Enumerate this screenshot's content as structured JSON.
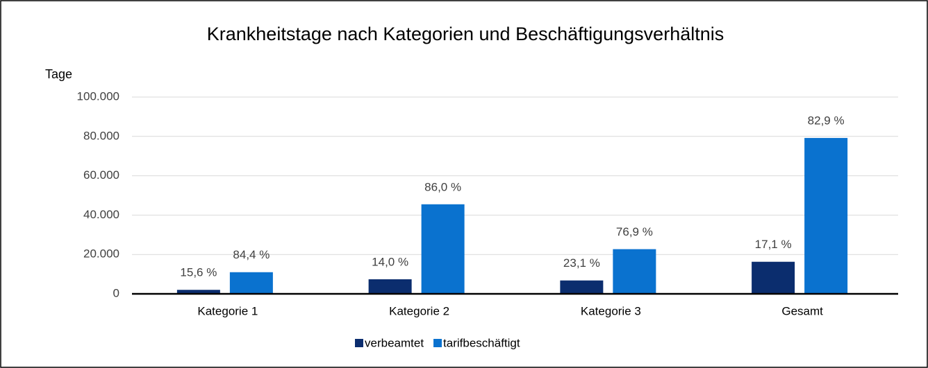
{
  "chart_data": {
    "type": "bar",
    "title": "Krankheitstage nach Kategorien und Beschäftigungsverhältnis",
    "y_label": "Tage",
    "categories": [
      "Kategorie 1",
      "Kategorie 2",
      "Kategorie 3",
      "Gesamt"
    ],
    "series": [
      {
        "name": "verbeamtet",
        "color": "#0b2d6e",
        "values": [
          2030,
          7400,
          6800,
          16300
        ],
        "data_labels": [
          "15,6 %",
          "14,0 %",
          "23,1 %",
          "17,1 %"
        ]
      },
      {
        "name": "tarifbeschäftigt",
        "color": "#0a72cf",
        "values": [
          11000,
          45500,
          22700,
          79200
        ],
        "data_labels": [
          "84,4 %",
          "86,0 %",
          "76,9 %",
          "82,9 %"
        ]
      }
    ],
    "ylim": [
      0,
      100000
    ],
    "yticks": [
      0,
      {
        "value": 20000,
        "label": "20.000"
      },
      {
        "value": 40000,
        "label": "40.000"
      },
      {
        "value": 60000,
        "label": "60.000"
      },
      {
        "value": 80000,
        "label": "80.000"
      },
      {
        "value": 100000,
        "label": "100.000"
      }
    ],
    "grid": true,
    "legend": "bottom"
  }
}
